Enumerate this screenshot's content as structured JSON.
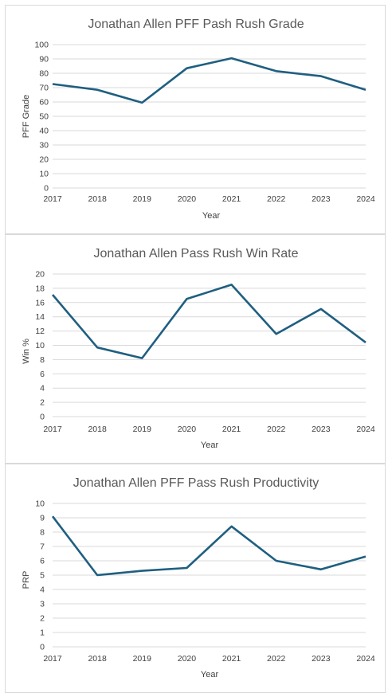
{
  "chart_data": [
    {
      "type": "line",
      "title": "Jonathan Allen PFF Pash Rush Grade",
      "xlabel": "Year",
      "ylabel": "PFF Grade",
      "categories": [
        "2017",
        "2018",
        "2019",
        "2020",
        "2021",
        "2022",
        "2023",
        "2024"
      ],
      "values": [
        72.5,
        68.5,
        59.5,
        83.5,
        90.5,
        81.5,
        78,
        68.5
      ],
      "ylim": [
        0,
        100
      ],
      "yticks": [
        0,
        10,
        20,
        30,
        40,
        50,
        60,
        70,
        80,
        90,
        100
      ],
      "grid": true,
      "color": "#1f5f80"
    },
    {
      "type": "line",
      "title": "Jonathan Allen Pass Rush Win Rate",
      "xlabel": "Year",
      "ylabel": "Win %",
      "categories": [
        "2017",
        "2018",
        "2019",
        "2020",
        "2021",
        "2022",
        "2023",
        "2024"
      ],
      "values": [
        17.1,
        9.7,
        8.2,
        16.5,
        18.5,
        11.6,
        15.1,
        10.4
      ],
      "ylim": [
        0,
        20
      ],
      "yticks": [
        0,
        2,
        4,
        6,
        8,
        10,
        12,
        14,
        16,
        18,
        20
      ],
      "grid": true,
      "color": "#1f5f80"
    },
    {
      "type": "line",
      "title": "Jonathan Allen PFF Pass Rush Productivity",
      "xlabel": "Year",
      "ylabel": "PRP",
      "categories": [
        "2017",
        "2018",
        "2019",
        "2020",
        "2021",
        "2022",
        "2023",
        "2024"
      ],
      "values": [
        9.1,
        5.0,
        5.3,
        5.5,
        8.4,
        6.0,
        5.4,
        6.3
      ],
      "ylim": [
        0,
        10
      ],
      "yticks": [
        0,
        1,
        2,
        3,
        4,
        5,
        6,
        7,
        8,
        9,
        10
      ],
      "grid": true,
      "color": "#1f5f80"
    }
  ]
}
